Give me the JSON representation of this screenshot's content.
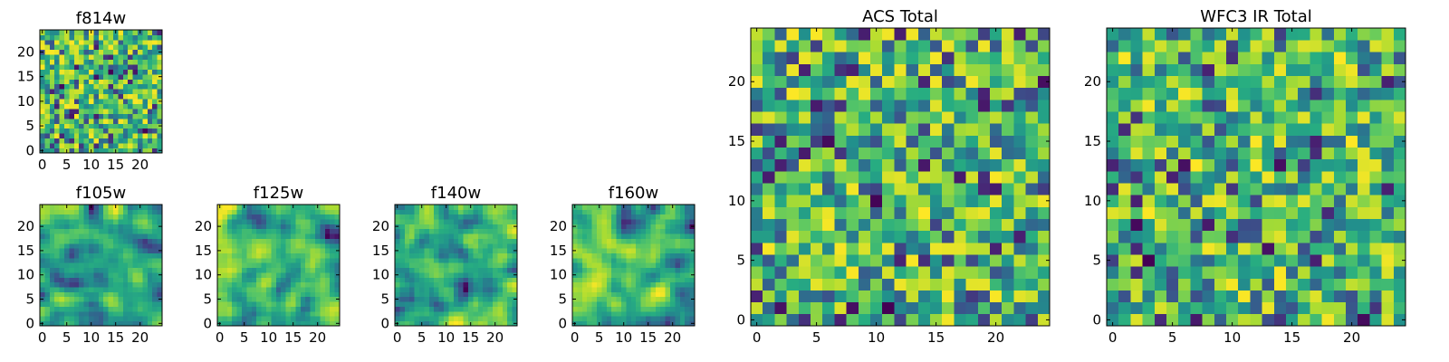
{
  "colormap": "viridis",
  "chart_data": [
    {
      "type": "heatmap",
      "title": "f814w",
      "data_size": 25,
      "seed": 11,
      "texture": "noise",
      "x_ticks": [
        "0",
        "5",
        "10",
        "15",
        "20"
      ],
      "y_ticks": [
        "0",
        "5",
        "10",
        "15",
        "20"
      ],
      "xlim": [
        0,
        24
      ],
      "ylim": [
        0,
        24
      ]
    },
    {
      "type": "heatmap",
      "title": "f105w",
      "data_size": 25,
      "seed": 23,
      "texture": "smooth",
      "x_ticks": [
        "0",
        "5",
        "10",
        "15",
        "20"
      ],
      "y_ticks": [
        "0",
        "5",
        "10",
        "15",
        "20"
      ],
      "xlim": [
        0,
        24
      ],
      "ylim": [
        0,
        24
      ]
    },
    {
      "type": "heatmap",
      "title": "f125w",
      "data_size": 25,
      "seed": 37,
      "texture": "smooth",
      "x_ticks": [
        "0",
        "5",
        "10",
        "15",
        "20"
      ],
      "y_ticks": [
        "0",
        "5",
        "10",
        "15",
        "20"
      ],
      "xlim": [
        0,
        24
      ],
      "ylim": [
        0,
        24
      ]
    },
    {
      "type": "heatmap",
      "title": "f140w",
      "data_size": 25,
      "seed": 41,
      "texture": "smooth",
      "x_ticks": [
        "0",
        "5",
        "10",
        "15",
        "20"
      ],
      "y_ticks": [
        "0",
        "5",
        "10",
        "15",
        "20"
      ],
      "xlim": [
        0,
        24
      ],
      "ylim": [
        0,
        24
      ]
    },
    {
      "type": "heatmap",
      "title": "f160w",
      "data_size": 25,
      "seed": 53,
      "texture": "smooth",
      "x_ticks": [
        "0",
        "5",
        "10",
        "15",
        "20"
      ],
      "y_ticks": [
        "0",
        "5",
        "10",
        "15",
        "20"
      ],
      "xlim": [
        0,
        24
      ],
      "ylim": [
        0,
        24
      ]
    },
    {
      "type": "heatmap",
      "title": "ACS Total",
      "data_size": 25,
      "seed": 67,
      "texture": "blocky",
      "x_ticks": [
        "0",
        "5",
        "10",
        "15",
        "20"
      ],
      "y_ticks": [
        "0",
        "5",
        "10",
        "15",
        "20"
      ],
      "xlim": [
        0,
        24
      ],
      "ylim": [
        0,
        24
      ]
    },
    {
      "type": "heatmap",
      "title": "WFC3 IR Total",
      "data_size": 25,
      "seed": 79,
      "texture": "blocky",
      "x_ticks": [
        "0",
        "5",
        "10",
        "15",
        "20"
      ],
      "y_ticks": [
        "0",
        "5",
        "10",
        "15",
        "20"
      ],
      "xlim": [
        0,
        24
      ],
      "ylim": [
        0,
        24
      ]
    }
  ]
}
